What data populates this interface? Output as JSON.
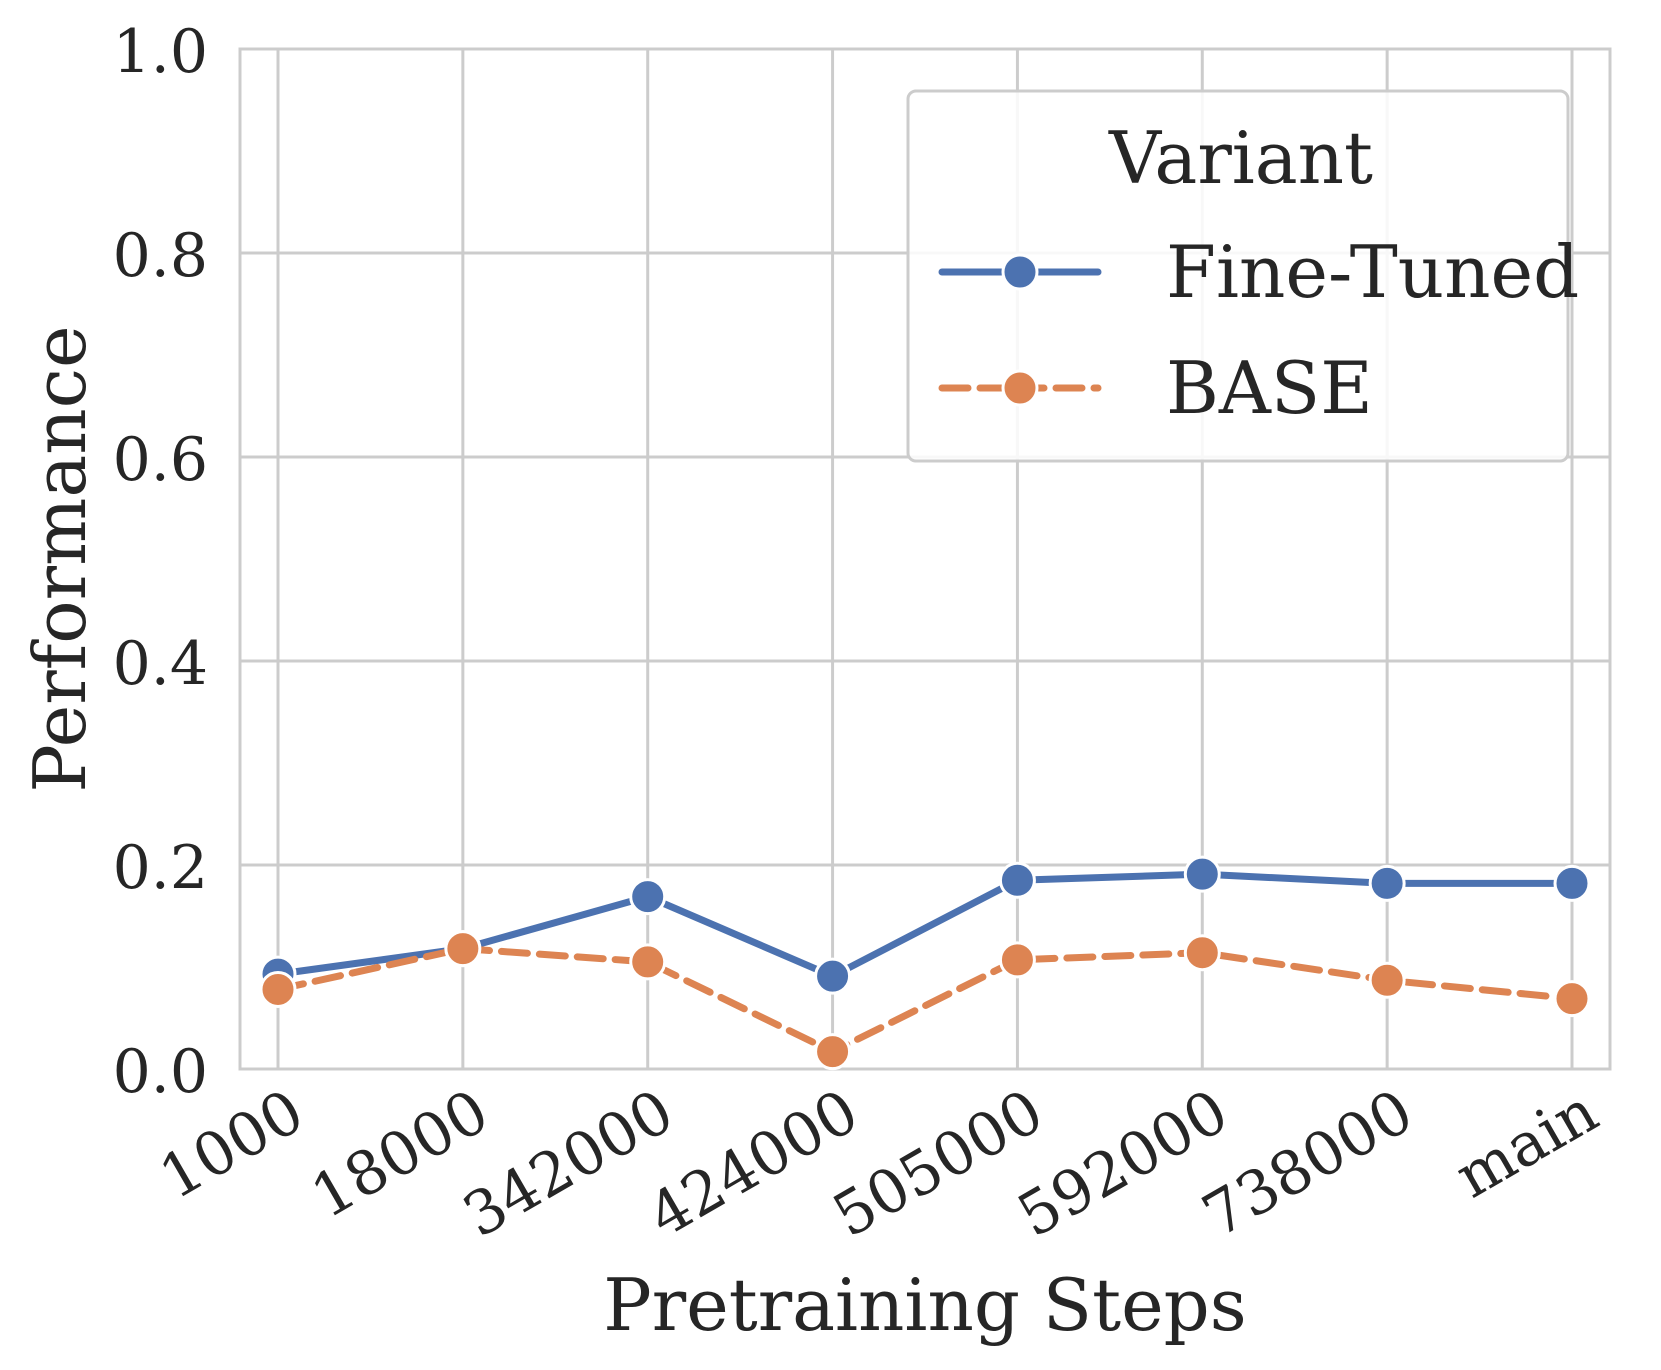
{
  "chart_data": {
    "type": "line",
    "title": "",
    "xlabel": "Pretraining Steps",
    "ylabel": "Performance",
    "ylim": [
      0.0,
      1.0
    ],
    "yticks": [
      "0.0",
      "0.2",
      "0.4",
      "0.6",
      "0.8",
      "1.0"
    ],
    "categories": [
      "1000",
      "18000",
      "342000",
      "424000",
      "505000",
      "592000",
      "738000",
      "main"
    ],
    "grid": true,
    "legend": {
      "title": "Variant",
      "placement": "top-right"
    },
    "series": [
      {
        "name": "Fine-Tuned",
        "style": "solid",
        "color": "#4c72b0",
        "values": [
          0.093,
          0.118,
          0.169,
          0.091,
          0.185,
          0.191,
          0.182,
          0.182
        ]
      },
      {
        "name": "BASE",
        "style": "dashed",
        "color": "#dd8452",
        "values": [
          0.078,
          0.118,
          0.105,
          0.017,
          0.107,
          0.114,
          0.087,
          0.069
        ]
      }
    ]
  }
}
